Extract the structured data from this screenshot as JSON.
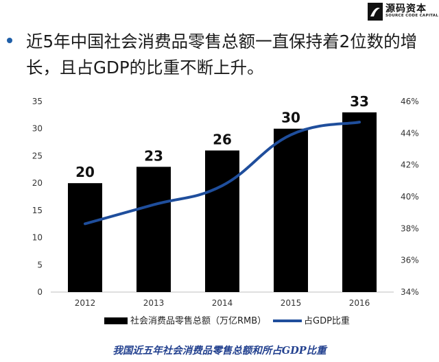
{
  "logo": {
    "name": "源码资本",
    "subtitle": "SOURCE CODE CAPITAL"
  },
  "headline": "近5年中国社会消费品零售总额一直保持着2位数的增长，且占GDP的比重不断上升。",
  "caption": "我国近五年社会消费品零售总额和所占GDP比重",
  "colors": {
    "bars": "#000000",
    "line": "#1f4e9c",
    "bullet": "#1f5fa8",
    "caption": "#23418f"
  },
  "chart_data": {
    "type": "bar",
    "categories": [
      "2012",
      "2013",
      "2014",
      "2015",
      "2016"
    ],
    "series": [
      {
        "name": "社会消费品零售总额（万亿RMB）",
        "type": "bar",
        "axis": "left",
        "values": [
          20,
          23,
          26,
          30,
          33
        ],
        "data_labels": [
          "20",
          "23",
          "26",
          "30",
          "33"
        ]
      },
      {
        "name": "占GDP比重",
        "type": "line",
        "axis": "right",
        "values": [
          38.3,
          39.5,
          40.7,
          43.9,
          44.7
        ]
      }
    ],
    "y_left": {
      "min": 0,
      "max": 35,
      "ticks": [
        "0",
        "5",
        "10",
        "15",
        "20",
        "25",
        "30",
        "35"
      ]
    },
    "y_right": {
      "min": 34,
      "max": 46,
      "ticks": [
        "34%",
        "36%",
        "38%",
        "40%",
        "42%",
        "44%",
        "46%"
      ]
    },
    "grid": false,
    "legend_position": "bottom",
    "title": "",
    "xlabel": "",
    "ylabel": ""
  }
}
